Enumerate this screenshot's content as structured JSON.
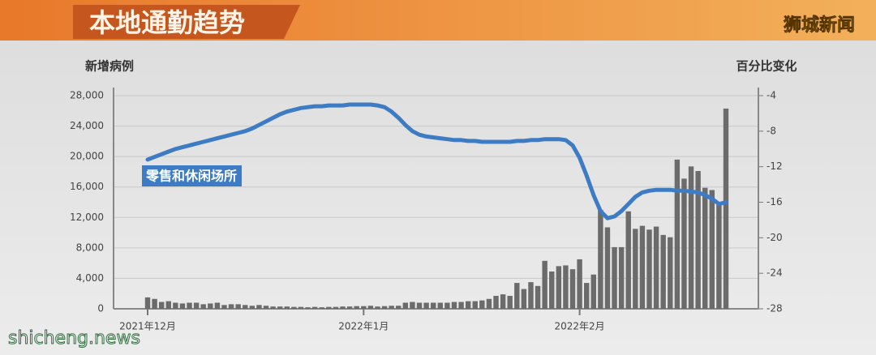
{
  "chart_data": {
    "type": "bar",
    "title": "本地通勤趋势",
    "ylabel": "新增病例",
    "y2label": "百分比变化",
    "watermark": "狮城新闻",
    "site": "shicheng.news",
    "categories": [
      "2021年12月",
      null,
      null,
      null,
      null,
      null,
      null,
      null,
      null,
      null,
      null,
      null,
      null,
      null,
      null,
      null,
      null,
      null,
      null,
      null,
      null,
      null,
      null,
      null,
      null,
      null,
      null,
      null,
      null,
      null,
      null,
      "2022年1月",
      null,
      null,
      null,
      null,
      null,
      null,
      null,
      null,
      null,
      null,
      null,
      null,
      null,
      null,
      null,
      null,
      null,
      null,
      null,
      null,
      null,
      null,
      null,
      null,
      null,
      null,
      null,
      null,
      null,
      null,
      "2022年2月",
      null,
      null,
      null,
      null,
      null,
      null,
      null,
      null,
      null,
      null,
      null,
      null,
      null,
      null,
      null,
      null,
      null,
      null,
      null,
      null,
      null
    ],
    "series": [
      {
        "color": "#6b6b6b",
        "values": [
          1500,
          1300,
          900,
          1000,
          800,
          700,
          800,
          800,
          600,
          700,
          800,
          500,
          600,
          600,
          500,
          400,
          500,
          400,
          300,
          300,
          300,
          250,
          250,
          200,
          250,
          200,
          250,
          250,
          300,
          300,
          350,
          350,
          400,
          300,
          350,
          400,
          400,
          800,
          900,
          800,
          800,
          800,
          800,
          800,
          900,
          900,
          1000,
          1000,
          1100,
          1300,
          1700,
          1900,
          1700,
          3400,
          2600,
          3500,
          3000,
          6300,
          4900,
          5600,
          5700,
          5200,
          6500,
          3400,
          4500,
          13000,
          10700,
          8100,
          8100,
          12800,
          10500,
          10900,
          10400,
          10800,
          9700,
          9400,
          19600,
          17100,
          18700,
          18100,
          15900,
          15600,
          14000,
          26300
        ]
      },
      {
        "name": "零售和休闲场所",
        "type": "line",
        "axis": "y2",
        "color": "#3d7cc4",
        "values": [
          -11.2,
          -10.9,
          -10.6,
          -10.3,
          -10.0,
          -9.8,
          -9.6,
          -9.4,
          -9.2,
          -9.0,
          -8.8,
          -8.6,
          -8.4,
          -8.2,
          -8.0,
          -7.7,
          -7.3,
          -6.9,
          -6.5,
          -6.1,
          -5.8,
          -5.6,
          -5.4,
          -5.3,
          -5.2,
          -5.2,
          -5.1,
          -5.1,
          -5.1,
          -5.0,
          -5.0,
          -5.0,
          -5.0,
          -5.1,
          -5.3,
          -5.8,
          -6.5,
          -7.3,
          -8.0,
          -8.4,
          -8.6,
          -8.7,
          -8.8,
          -8.9,
          -9.0,
          -9.0,
          -9.1,
          -9.1,
          -9.2,
          -9.2,
          -9.2,
          -9.2,
          -9.2,
          -9.1,
          -9.1,
          -9.0,
          -9.0,
          -8.9,
          -8.9,
          -8.9,
          -9.0,
          -9.6,
          -11.0,
          -13.0,
          -15.2,
          -17.0,
          -17.8,
          -17.6,
          -17.0,
          -16.2,
          -15.4,
          -14.9,
          -14.7,
          -14.6,
          -14.6,
          -14.6,
          -14.7,
          -14.7,
          -14.8,
          -14.9,
          -15.2,
          -15.6,
          -16.2,
          -16.0
        ]
      }
    ],
    "ylim": [
      0,
      28000
    ],
    "yticks": [
      0,
      {
        "value": 4000,
        "label": "4,000"
      },
      {
        "value": 8000,
        "label": "8,000"
      },
      {
        "value": 12000,
        "label": "12,000"
      },
      {
        "value": 16000,
        "label": "16,000"
      },
      {
        "value": 20000,
        "label": "20,000"
      },
      {
        "value": 24000,
        "label": "24,000"
      },
      {
        "value": 28000,
        "label": "28,000"
      }
    ],
    "y2lim": [
      -28,
      -4
    ],
    "y2ticks": [
      -4,
      -8,
      -12,
      -16,
      -20,
      -24,
      -28
    ],
    "grid": true
  }
}
